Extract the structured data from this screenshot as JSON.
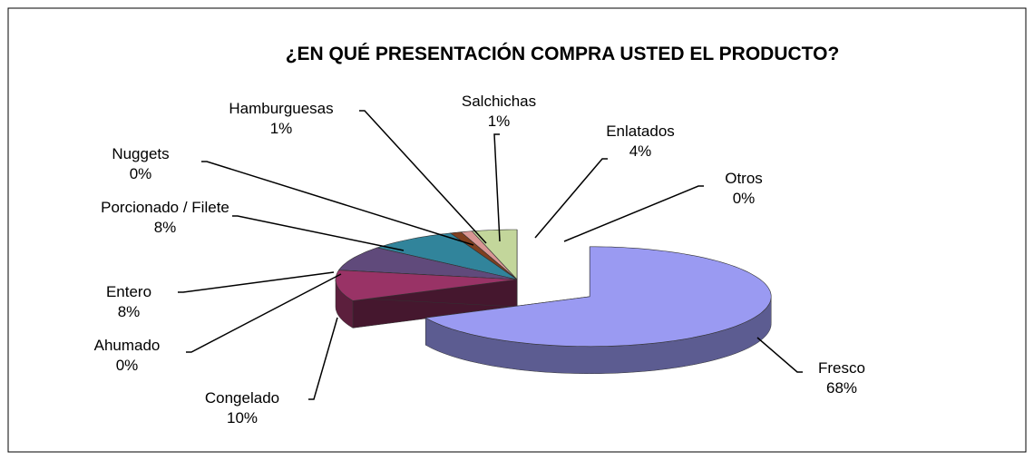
{
  "chart_data": {
    "type": "pie3d",
    "title": "¿EN QUÉ PRESENTACIÓN COMPRA USTED EL PRODUCTO?",
    "categories": [
      "Fresco",
      "Congelado",
      "Ahumado",
      "Entero",
      "Porcionado / Filete",
      "Nuggets",
      "Hamburguesas",
      "Salchichas",
      "Enlatados",
      "Otros"
    ],
    "values": [
      68,
      10,
      0,
      8,
      8,
      0,
      1,
      1,
      4,
      0
    ],
    "value_labels": [
      "68%",
      "10%",
      "0%",
      "8%",
      "8%",
      "0%",
      "1%",
      "1%",
      "4%",
      "0%"
    ],
    "colors": [
      "#9a9af2",
      "#993366",
      "#ffffcc",
      "#604a7b",
      "#31849b",
      "#ff99cc",
      "#7f3f1f",
      "#d99694",
      "#c3d69b",
      "#ffffff"
    ]
  }
}
